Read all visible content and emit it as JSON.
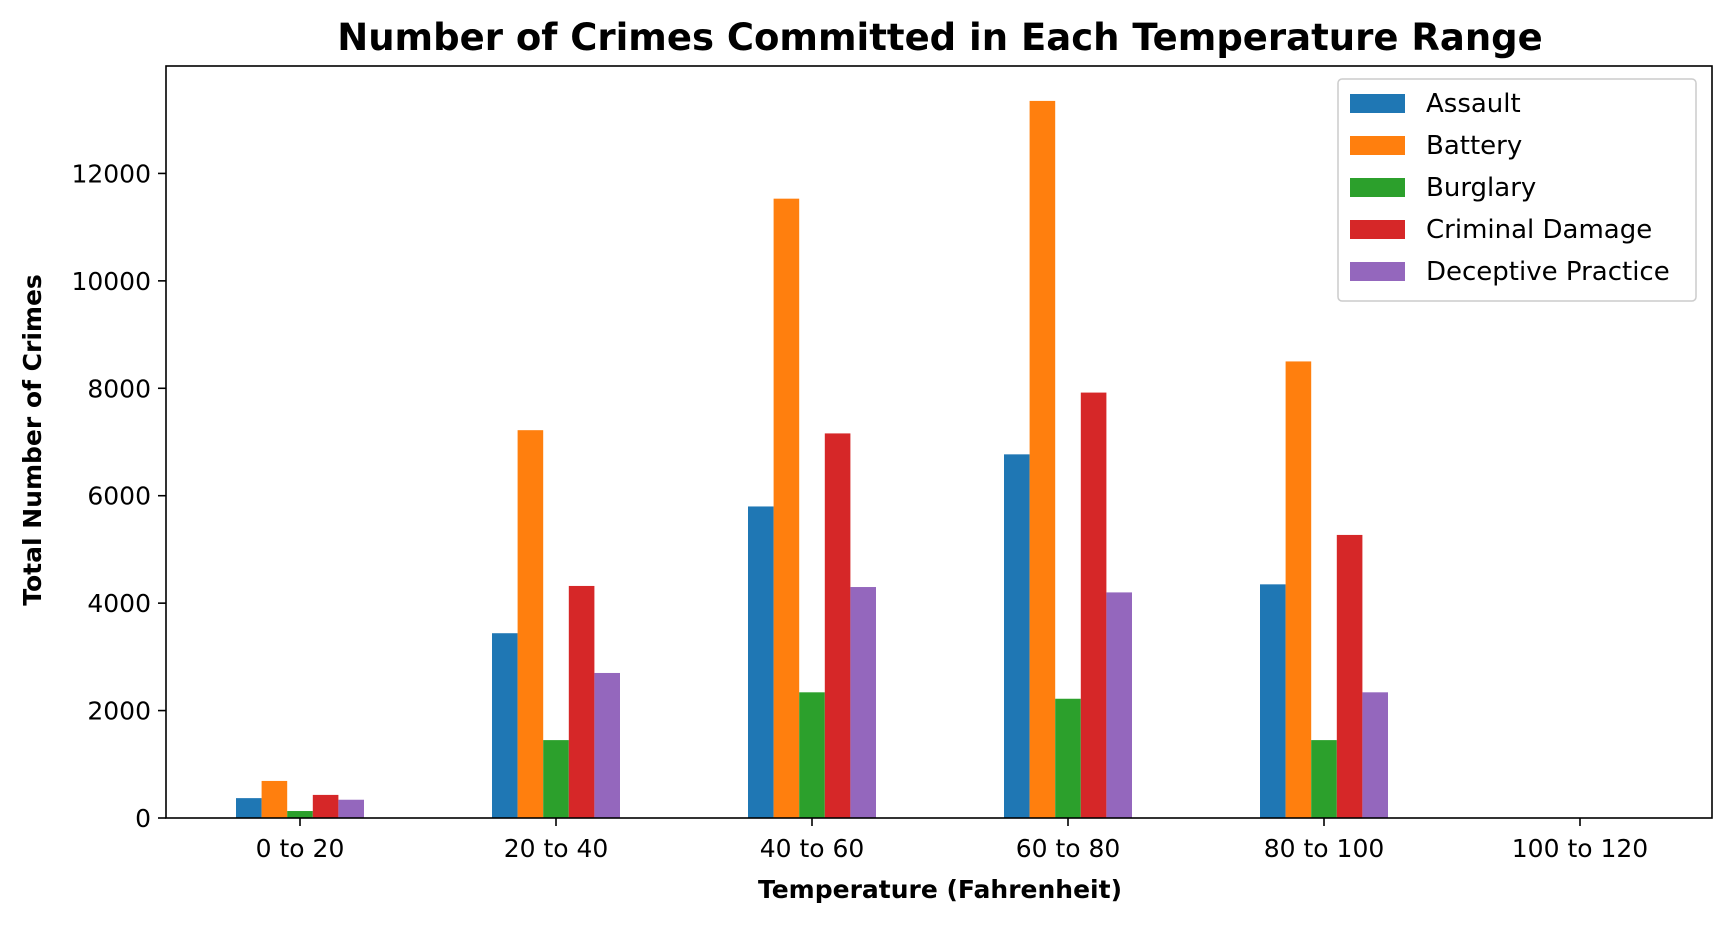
{
  "chart_data": {
    "type": "bar",
    "title": "Number of Crimes Committed in Each Temperature Range",
    "xlabel": "Temperature (Fahrenheit)",
    "ylabel": "Total Number of Crimes",
    "categories": [
      "0 to 20",
      "20 to 40",
      "40 to 60",
      "60 to 80",
      "80 to 100",
      "100 to 120"
    ],
    "yticks": [
      0,
      2000,
      4000,
      6000,
      8000,
      10000,
      12000
    ],
    "ylim": [
      0,
      14000
    ],
    "grid": false,
    "legend_position": "top-right",
    "series": [
      {
        "name": "Assault",
        "color": "#1f77b4",
        "values": [
          370,
          3440,
          5800,
          6770,
          4350,
          0
        ]
      },
      {
        "name": "Battery",
        "color": "#ff7f0e",
        "values": [
          690,
          7220,
          11530,
          13350,
          8500,
          0
        ]
      },
      {
        "name": "Burglary",
        "color": "#2ca02c",
        "values": [
          130,
          1450,
          2340,
          2220,
          1450,
          0
        ]
      },
      {
        "name": "Criminal Damage",
        "color": "#d62728",
        "values": [
          430,
          4320,
          7160,
          7920,
          5270,
          0
        ]
      },
      {
        "name": "Deceptive Practice",
        "color": "#9467bd",
        "values": [
          340,
          2700,
          4300,
          4200,
          2340,
          0
        ]
      }
    ]
  }
}
